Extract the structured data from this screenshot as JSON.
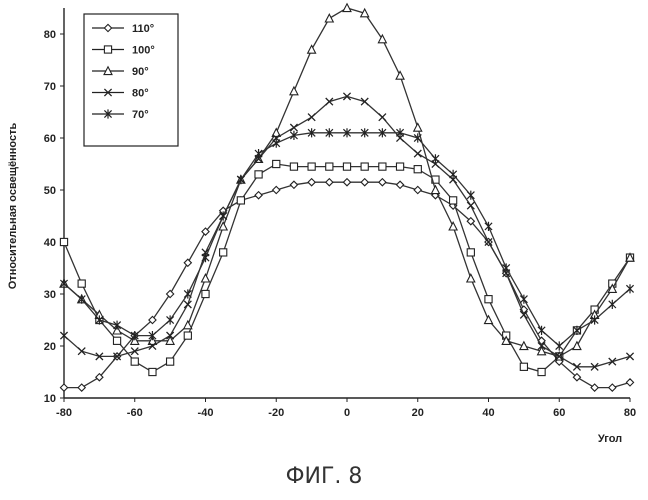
{
  "caption": "ФИГ. 8",
  "chart_data": {
    "type": "line",
    "ylabel": "Относительная освещённость",
    "xlabel": "Угол",
    "xlim": [
      -80,
      80
    ],
    "ylim": [
      10,
      85
    ],
    "xticks": [
      -80,
      -60,
      -40,
      -20,
      0,
      20,
      40,
      60,
      80
    ],
    "yticks": [
      10,
      20,
      30,
      40,
      50,
      60,
      70,
      80
    ],
    "legend_position": "top-left",
    "x": [
      -80,
      -75,
      -70,
      -65,
      -60,
      -55,
      -50,
      -45,
      -40,
      -35,
      -30,
      -25,
      -20,
      -15,
      -10,
      -5,
      0,
      5,
      10,
      15,
      20,
      25,
      30,
      35,
      40,
      45,
      50,
      55,
      60,
      65,
      70,
      75,
      80
    ],
    "series": [
      {
        "name": "110°",
        "marker": "diamond",
        "values": [
          12,
          12,
          14,
          18,
          22,
          25,
          30,
          36,
          42,
          46,
          48,
          49,
          50,
          51,
          51.5,
          51.5,
          51.5,
          51.5,
          51.5,
          51,
          50,
          49,
          47,
          44,
          40,
          34,
          27,
          21,
          17,
          14,
          12,
          12,
          13
        ]
      },
      {
        "name": "100°",
        "marker": "square",
        "values": [
          40,
          32,
          25,
          21,
          17,
          15,
          17,
          22,
          30,
          38,
          48,
          53,
          55,
          54.5,
          54.5,
          54.5,
          54.5,
          54.5,
          54.5,
          54.5,
          54,
          52,
          48,
          38,
          29,
          22,
          16,
          15,
          18,
          23,
          27,
          32,
          37
        ]
      },
      {
        "name": "90°",
        "marker": "triangle",
        "values": [
          32,
          29,
          26,
          23,
          21,
          21,
          21,
          24,
          33,
          43,
          52,
          56,
          61,
          69,
          77,
          83,
          85,
          84,
          79,
          72,
          62,
          50,
          43,
          33,
          25,
          21,
          20,
          19,
          18,
          20,
          26,
          31,
          37
        ]
      },
      {
        "name": "80°",
        "marker": "x",
        "values": [
          22,
          19,
          18,
          18,
          19,
          20,
          22,
          28,
          38,
          45,
          52,
          56,
          60,
          62,
          64,
          67,
          68,
          67,
          64,
          60,
          57,
          55,
          52,
          47,
          40,
          34,
          26,
          20,
          18,
          16,
          16,
          17,
          18
        ]
      },
      {
        "name": "70°",
        "marker": "star",
        "values": [
          32,
          29,
          25,
          24,
          22,
          22,
          25,
          30,
          37,
          45,
          52,
          57,
          59,
          60.5,
          61,
          61,
          61,
          61,
          61,
          61,
          60,
          56,
          53,
          49,
          43,
          35,
          29,
          23,
          20,
          23,
          25,
          28,
          31
        ]
      }
    ]
  }
}
